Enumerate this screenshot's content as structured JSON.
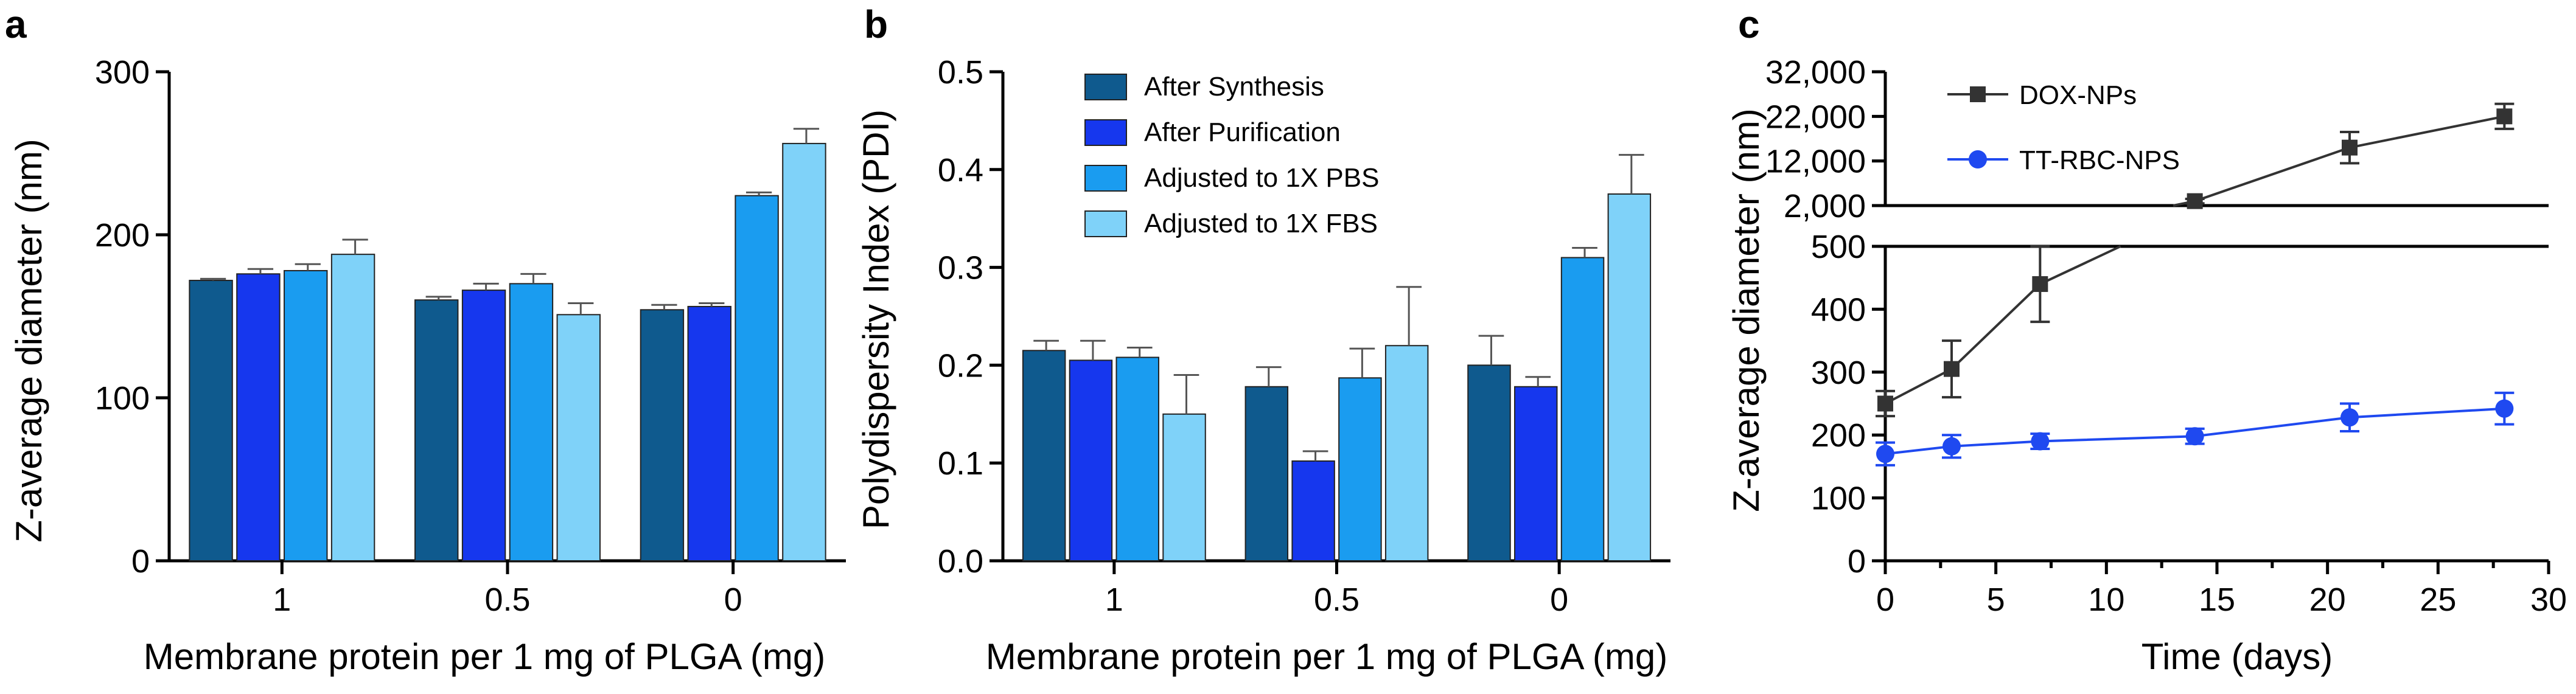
{
  "colors": {
    "after_synthesis": "#0f5a8e",
    "after_purification": "#1637ee",
    "adjusted_pbs": "#1a9cf0",
    "adjusted_fbs": "#7fd2f9",
    "dox": "#333333",
    "tt": "#1f49f0"
  },
  "chart_data": [
    {
      "panel": "a",
      "type": "bar",
      "categories": [
        "1",
        "0.5",
        "0"
      ],
      "xlabel": "Membrane protein per 1 mg of PLGA (mg)",
      "ylabel": "Z-average diameter (nm)",
      "ylim": [
        0,
        300
      ],
      "yticks": [
        "0",
        "100",
        "200",
        "300"
      ],
      "series": [
        {
          "name": "After Synthesis",
          "values": [
            172,
            160,
            154
          ],
          "errors": [
            1,
            2,
            3
          ]
        },
        {
          "name": "After Purification",
          "values": [
            176,
            166,
            156
          ],
          "errors": [
            3,
            4,
            2
          ]
        },
        {
          "name": "Adjusted to 1X PBS",
          "values": [
            178,
            170,
            224
          ],
          "errors": [
            4,
            6,
            2
          ]
        },
        {
          "name": "Adjusted to 1X FBS",
          "values": [
            188,
            151,
            256
          ],
          "errors": [
            9,
            7,
            9
          ]
        }
      ]
    },
    {
      "panel": "b",
      "type": "bar",
      "categories": [
        "1",
        "0.5",
        "0"
      ],
      "xlabel": "Membrane protein per 1 mg of PLGA (mg)",
      "ylabel": "Polydispersity Index (PDI)",
      "ylim": [
        0,
        0.5
      ],
      "yticks": [
        "0.0",
        "0.1",
        "0.2",
        "0.3",
        "0.4",
        "0.5"
      ],
      "legend": [
        "After Synthesis",
        "After Purification",
        "Adjusted to 1X PBS",
        "Adjusted to 1X FBS"
      ],
      "series": [
        {
          "name": "After Synthesis",
          "values": [
            0.215,
            0.178,
            0.2
          ],
          "errors": [
            0.01,
            0.02,
            0.03
          ]
        },
        {
          "name": "After Purification",
          "values": [
            0.205,
            0.102,
            0.178
          ],
          "errors": [
            0.02,
            0.01,
            0.01
          ]
        },
        {
          "name": "Adjusted to 1X PBS",
          "values": [
            0.208,
            0.187,
            0.31
          ],
          "errors": [
            0.01,
            0.03,
            0.01
          ]
        },
        {
          "name": "Adjusted to 1X FBS",
          "values": [
            0.15,
            0.22,
            0.375
          ],
          "errors": [
            0.04,
            0.06,
            0.04
          ]
        }
      ]
    },
    {
      "panel": "c",
      "type": "line",
      "xlabel": "Time (days)",
      "ylabel": "Z-average diameter (nm)",
      "xlim": [
        0,
        30
      ],
      "xticks": [
        "0",
        "5",
        "10",
        "15",
        "20",
        "25",
        "30"
      ],
      "yticks_lower": [
        "0",
        "100",
        "200",
        "300",
        "400",
        "500"
      ],
      "yticks_upper": [
        "2,000",
        "12,000",
        "22,000",
        "32,000"
      ],
      "ylim_lower": [
        0,
        500
      ],
      "ylim_upper": [
        2000,
        32000
      ],
      "series": [
        {
          "name": "DOX-NPs",
          "x": [
            0,
            3,
            7,
            14,
            21,
            28
          ],
          "values": [
            250,
            305,
            440,
            3000,
            15000,
            22000
          ],
          "errors": [
            20,
            45,
            60,
            500,
            3500,
            2800
          ]
        },
        {
          "name": "TT-RBC-NPS",
          "x": [
            0,
            3,
            7,
            14,
            21,
            28
          ],
          "values": [
            170,
            182,
            190,
            198,
            228,
            242
          ],
          "errors": [
            18,
            18,
            12,
            12,
            22,
            25
          ]
        }
      ]
    }
  ]
}
